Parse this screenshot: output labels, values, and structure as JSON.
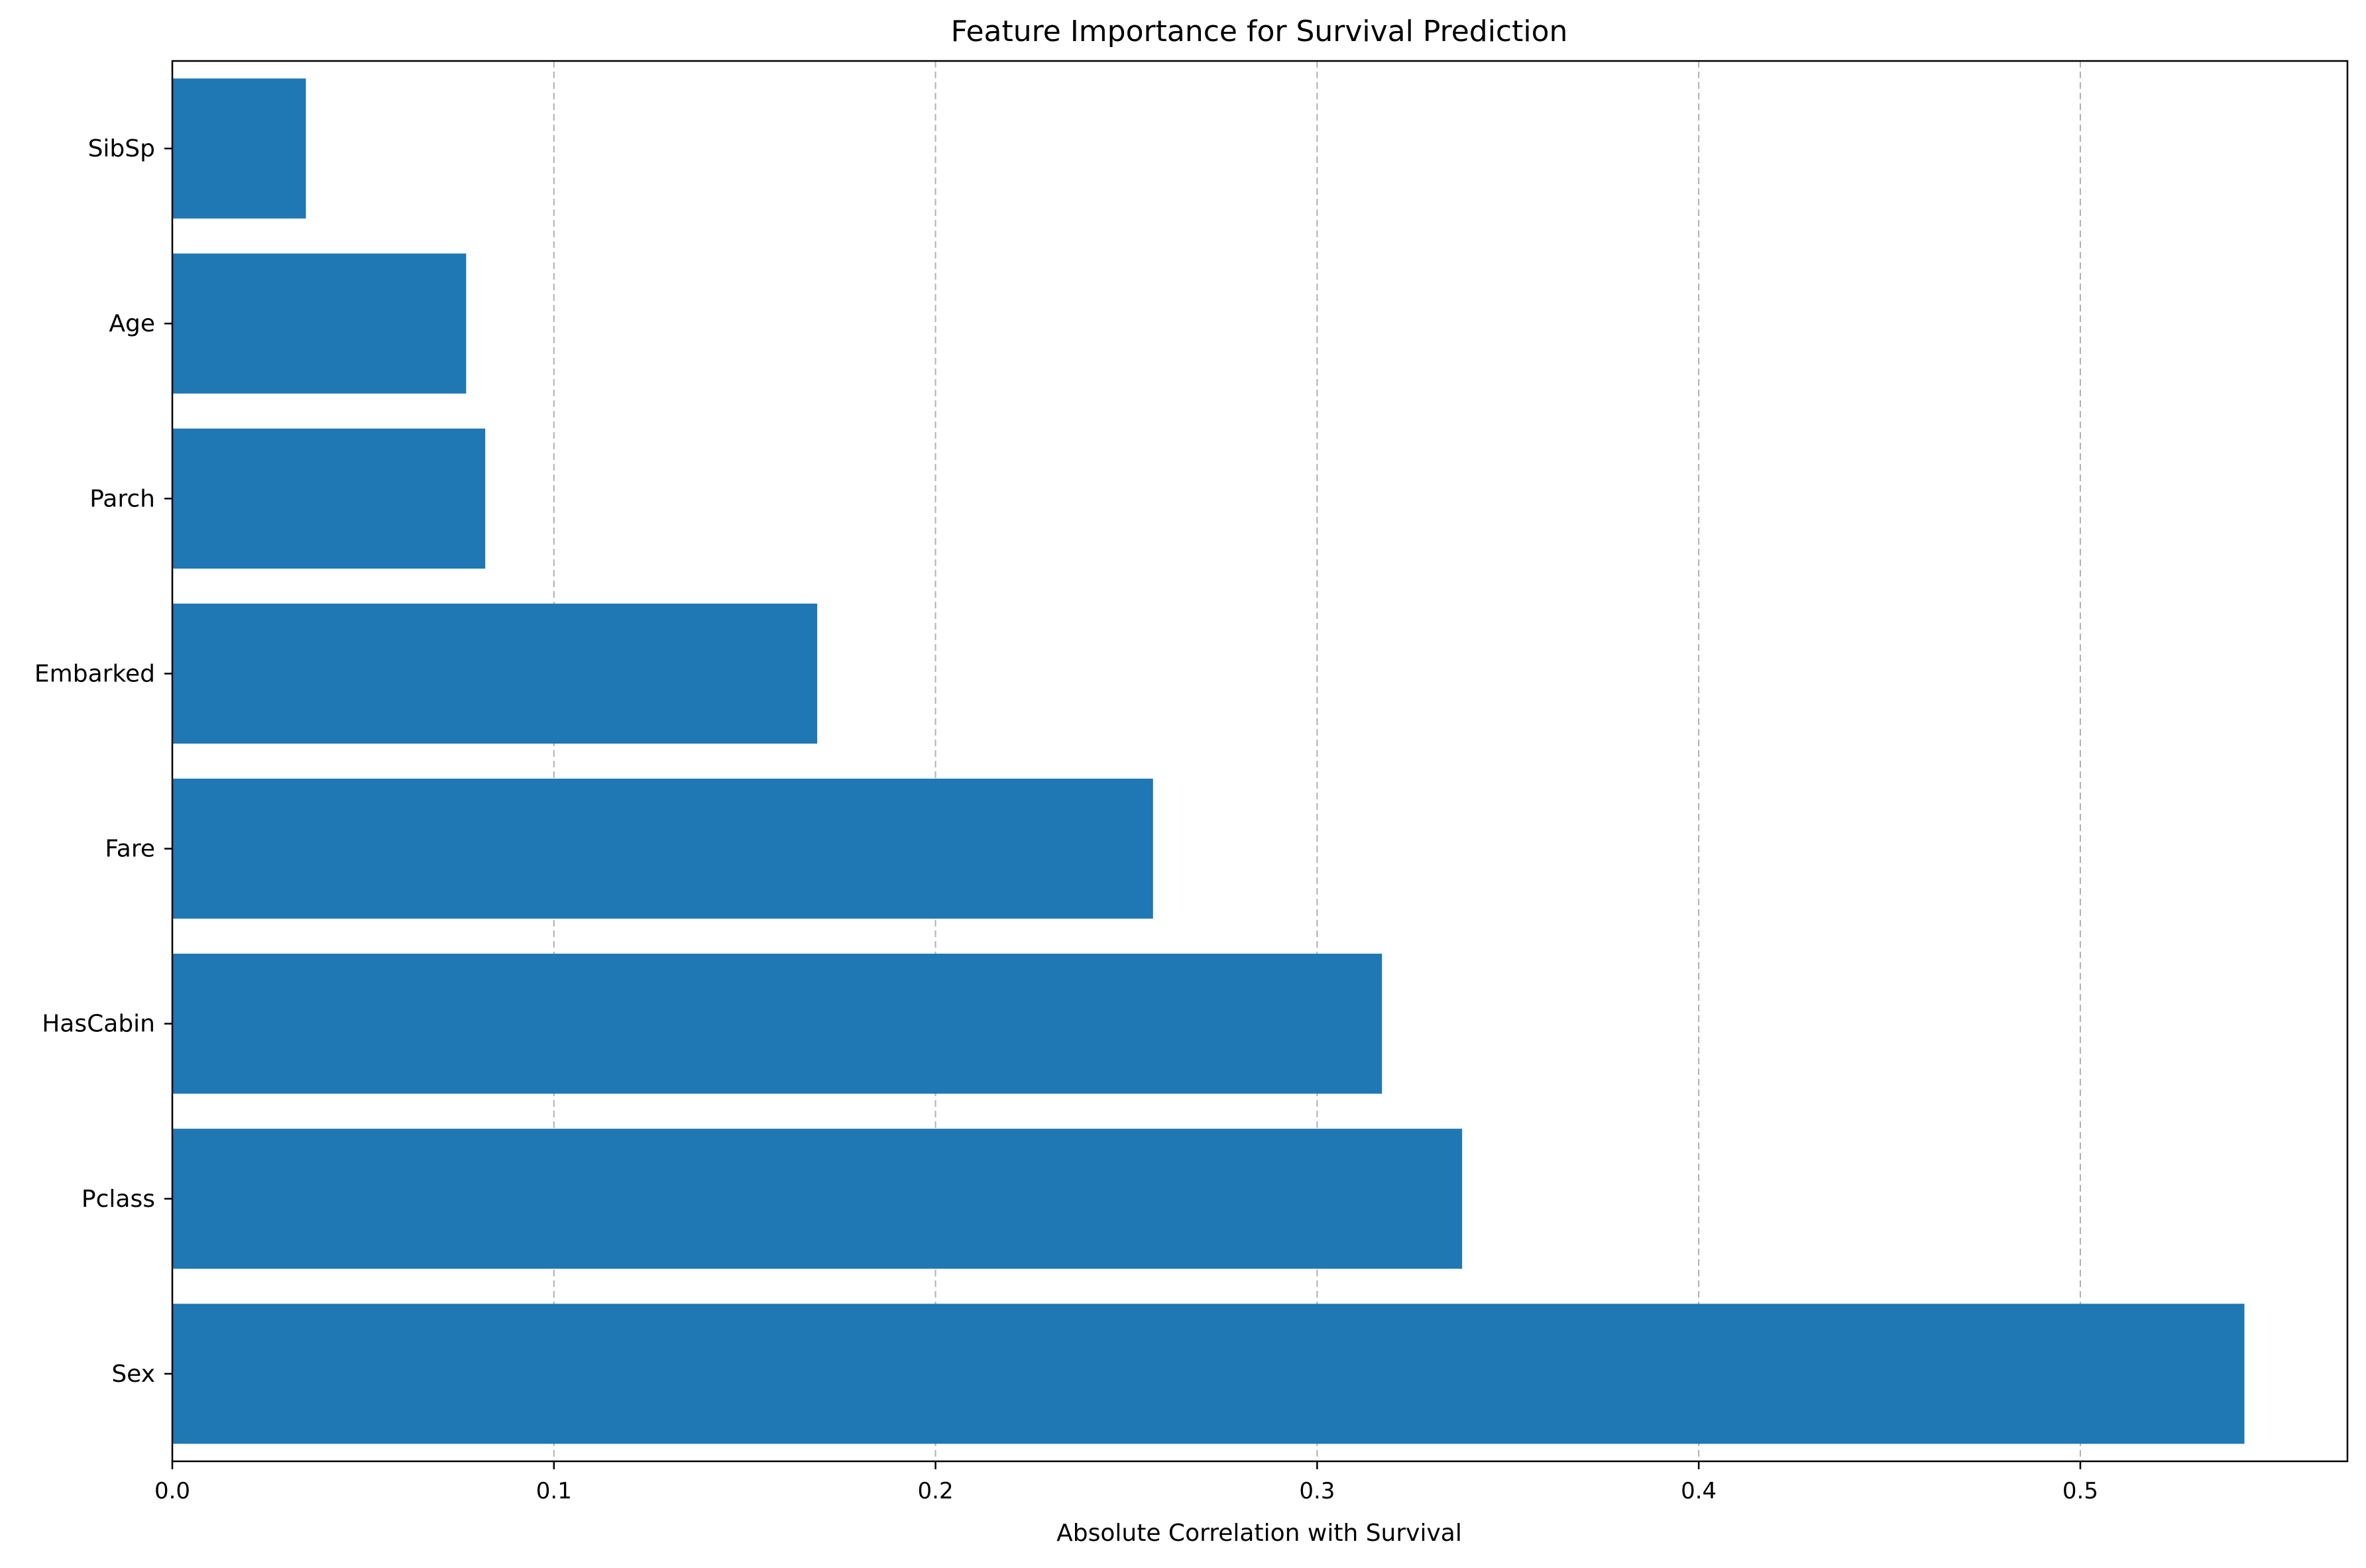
{
  "chart_data": {
    "type": "bar",
    "orientation": "horizontal",
    "title": "Feature Importance for Survival Prediction",
    "xlabel": "Absolute Correlation with Survival",
    "ylabel": "",
    "categories": [
      "Sex",
      "Pclass",
      "HasCabin",
      "Fare",
      "Embarked",
      "Parch",
      "Age",
      "SibSp"
    ],
    "values": [
      0.543,
      0.338,
      0.317,
      0.257,
      0.169,
      0.082,
      0.077,
      0.035
    ],
    "xlim": [
      0,
      0.57
    ],
    "xticks": [
      0.0,
      0.1,
      0.2,
      0.3,
      0.4,
      0.5
    ],
    "xtick_labels": [
      "0.0",
      "0.1",
      "0.2",
      "0.3",
      "0.4",
      "0.5"
    ],
    "grid": "x-dashed",
    "bar_color": "#1f77b4",
    "grid_color": "#b0b0b0"
  }
}
